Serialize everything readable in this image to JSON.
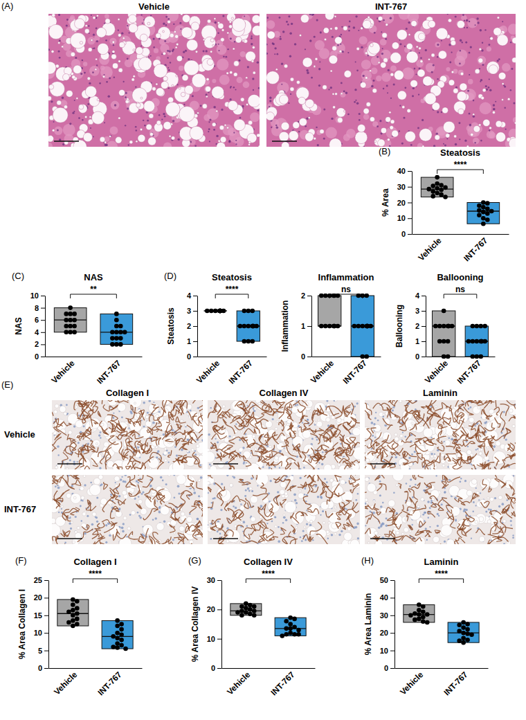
{
  "images": [
    {
      "panel": "(A)",
      "columns": [
        "Vehicle",
        "INT-767"
      ]
    },
    {
      "panel": "(E)",
      "columns": [
        "Collagen I",
        "Collagen IV",
        "Laminin"
      ],
      "rows": [
        "Vehicle",
        "INT-767"
      ]
    }
  ],
  "chart_data": [
    {
      "type": "box",
      "panel": "(B)",
      "title": "Steatosis",
      "y_label": "% Area",
      "categories": [
        "Vehicle",
        "INT-767"
      ],
      "colors": [
        "#a6a6a6",
        "#3a9ad9"
      ],
      "values": [
        [
          36,
          32,
          31,
          30.5,
          29.5,
          29,
          28.5,
          28,
          27,
          26,
          25,
          24,
          23.5
        ],
        [
          20,
          19.5,
          18,
          17,
          16,
          15,
          14.5,
          14,
          13,
          12,
          10,
          9,
          6.5
        ]
      ],
      "stats": [
        {
          "min": 23.5,
          "median": 28.5,
          "max": 36
        },
        {
          "min": 6.5,
          "median": 14.5,
          "max": 20
        }
      ],
      "ylim": [
        0,
        40
      ],
      "yticks": [
        0,
        10,
        20,
        30,
        40
      ],
      "annotations": [
        "****"
      ]
    },
    {
      "type": "box",
      "panel": "(C)",
      "title": "NAS",
      "y_label": "NAS",
      "categories": [
        "Vehicle",
        "INT-767"
      ],
      "colors": [
        "#a6a6a6",
        "#3a9ad9"
      ],
      "values": [
        [
          8,
          7,
          7,
          7,
          6,
          6,
          6,
          5,
          5,
          5,
          4,
          4,
          4
        ],
        [
          7,
          6,
          5,
          5,
          4,
          4,
          4,
          4,
          3,
          3,
          3,
          2,
          2,
          2
        ]
      ],
      "stats": [
        {
          "min": 4,
          "median": 6,
          "max": 8
        },
        {
          "min": 2,
          "median": 4,
          "max": 7
        }
      ],
      "ylim": [
        0,
        10
      ],
      "yticks": [
        0,
        2,
        4,
        6,
        8,
        10
      ],
      "annotations": [
        "**"
      ]
    },
    {
      "type": "box",
      "panel": "(D)",
      "title": "Steatosis",
      "y_label": "Steatosis",
      "categories": [
        "Vehicle",
        "INT-767"
      ],
      "colors": [
        "#a6a6a6",
        "#3a9ad9"
      ],
      "values": [
        [
          3,
          3,
          3,
          3,
          3,
          3,
          3,
          3,
          3,
          3,
          3,
          3,
          3
        ],
        [
          3,
          3,
          3,
          2,
          2,
          2,
          2,
          2,
          2,
          2,
          2,
          1,
          1,
          1
        ]
      ],
      "stats": [
        {
          "min": 3,
          "median": 3,
          "max": 3
        },
        {
          "min": 1,
          "median": 2,
          "max": 3
        }
      ],
      "ylim": [
        0,
        4
      ],
      "yticks": [
        0,
        1,
        2,
        3,
        4
      ],
      "annotations": [
        "****"
      ]
    },
    {
      "type": "box",
      "title": "Inflammation",
      "y_label": "Inflammation",
      "categories": [
        "Vehicle",
        "INT-767"
      ],
      "colors": [
        "#a6a6a6",
        "#3a9ad9"
      ],
      "values": [
        [
          2,
          2,
          2,
          2,
          2,
          2,
          1,
          1,
          1,
          1,
          1,
          1,
          1
        ],
        [
          2,
          2,
          2,
          1,
          1,
          1,
          1,
          1,
          1,
          1,
          1,
          1,
          0,
          0
        ]
      ],
      "stats": [
        {
          "min": 1,
          "median": 1,
          "max": 2
        },
        {
          "min": 0,
          "median": 1,
          "max": 2
        }
      ],
      "ylim": [
        0,
        2
      ],
      "yticks": [
        0,
        1,
        2
      ],
      "annotations": [
        "ns"
      ]
    },
    {
      "type": "box",
      "title": "Ballooning",
      "y_label": "Ballooning",
      "categories": [
        "Vehicle",
        "INT-767"
      ],
      "colors": [
        "#a6a6a6",
        "#3a9ad9"
      ],
      "values": [
        [
          3,
          2,
          2,
          2,
          2,
          2,
          2,
          2,
          1,
          1,
          1,
          0,
          0
        ],
        [
          2,
          2,
          2,
          2,
          1,
          1,
          1,
          1,
          1,
          1,
          1,
          0,
          0,
          0
        ]
      ],
      "stats": [
        {
          "min": 0,
          "median": 2,
          "max": 3
        },
        {
          "min": 0,
          "median": 1,
          "max": 2
        }
      ],
      "ylim": [
        0,
        4
      ],
      "yticks": [
        0,
        1,
        2,
        3,
        4
      ],
      "annotations": [
        "ns"
      ]
    },
    {
      "type": "box",
      "panel": "(F)",
      "title": "Collagen I",
      "y_label": "% Area Collagen I",
      "categories": [
        "Vehicle",
        "INT-767"
      ],
      "colors": [
        "#a6a6a6",
        "#3a9ad9"
      ],
      "values": [
        [
          19.5,
          19,
          18,
          17,
          16.5,
          16,
          15.5,
          15,
          14,
          13.5,
          13,
          12.5,
          12
        ],
        [
          13.5,
          12.5,
          12,
          11,
          10,
          9.5,
          9,
          8.5,
          8,
          7,
          6.5,
          6,
          5.8,
          5.5
        ]
      ],
      "stats": [
        {
          "min": 12,
          "median": 15.5,
          "max": 19.5
        },
        {
          "min": 5.5,
          "median": 9,
          "max": 13.5
        }
      ],
      "ylim": [
        0,
        25
      ],
      "yticks": [
        0,
        5,
        10,
        15,
        20,
        25
      ],
      "annotations": [
        "****"
      ]
    },
    {
      "type": "box",
      "panel": "(G)",
      "title": "Collagen IV",
      "y_label": "% Area Collagen IV",
      "categories": [
        "Vehicle",
        "INT-767"
      ],
      "colors": [
        "#a6a6a6",
        "#3a9ad9"
      ],
      "values": [
        [
          22,
          21.5,
          21,
          21,
          20.5,
          20,
          19.5,
          19.5,
          19,
          19,
          18.5,
          18,
          18
        ],
        [
          17.2,
          16.8,
          16,
          15,
          14,
          13.5,
          13.5,
          13,
          12,
          11.5,
          11.5,
          11.5,
          11
        ]
      ],
      "stats": [
        {
          "min": 18,
          "median": 19.5,
          "max": 22
        },
        {
          "min": 11,
          "median": 13.5,
          "max": 17.2
        }
      ],
      "ylim": [
        0,
        30
      ],
      "yticks": [
        0,
        10,
        20,
        30
      ],
      "annotations": [
        "****"
      ]
    },
    {
      "type": "box",
      "panel": "(H)",
      "title": "Laminin",
      "y_label": "% Area Laminin",
      "categories": [
        "Vehicle",
        "INT-767"
      ],
      "colors": [
        "#a6a6a6",
        "#3a9ad9"
      ],
      "values": [
        [
          36,
          35,
          33,
          32,
          31,
          30.5,
          30.5,
          30,
          29,
          28,
          27.5,
          26.5,
          26
        ],
        [
          26,
          25,
          24.5,
          23,
          22,
          21,
          20,
          19.5,
          19,
          17,
          16,
          15.5,
          14.5
        ]
      ],
      "stats": [
        {
          "min": 26,
          "median": 30.5,
          "max": 36
        },
        {
          "min": 14.5,
          "median": 20,
          "max": 26
        }
      ],
      "ylim": [
        0,
        50
      ],
      "yticks": [
        0,
        10,
        20,
        30,
        40,
        50
      ],
      "annotations": [
        "****"
      ]
    }
  ]
}
